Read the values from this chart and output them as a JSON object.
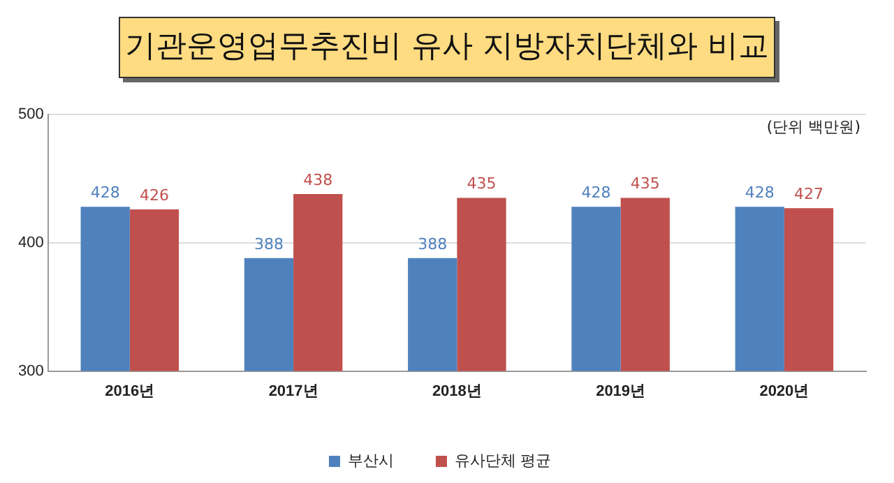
{
  "chart_data": {
    "type": "bar",
    "title": "기관운영업무추진비 유사 지방자치단체와 비교",
    "categories": [
      "2016년",
      "2017년",
      "2018년",
      "2019년",
      "2020년"
    ],
    "series": [
      {
        "name": "부산시",
        "color": "#4f81bd",
        "values": [
          428,
          388,
          388,
          428,
          428
        ]
      },
      {
        "name": "유사단체 평균",
        "color": "#c0504d",
        "values": [
          426,
          438,
          435,
          435,
          427
        ]
      }
    ],
    "ylim": [
      300,
      500
    ],
    "yticks": [
      300,
      400,
      500
    ],
    "grid": "y",
    "legend": "bottom",
    "data_labels": true,
    "annotations": [
      "(단위 백만원)"
    ]
  }
}
